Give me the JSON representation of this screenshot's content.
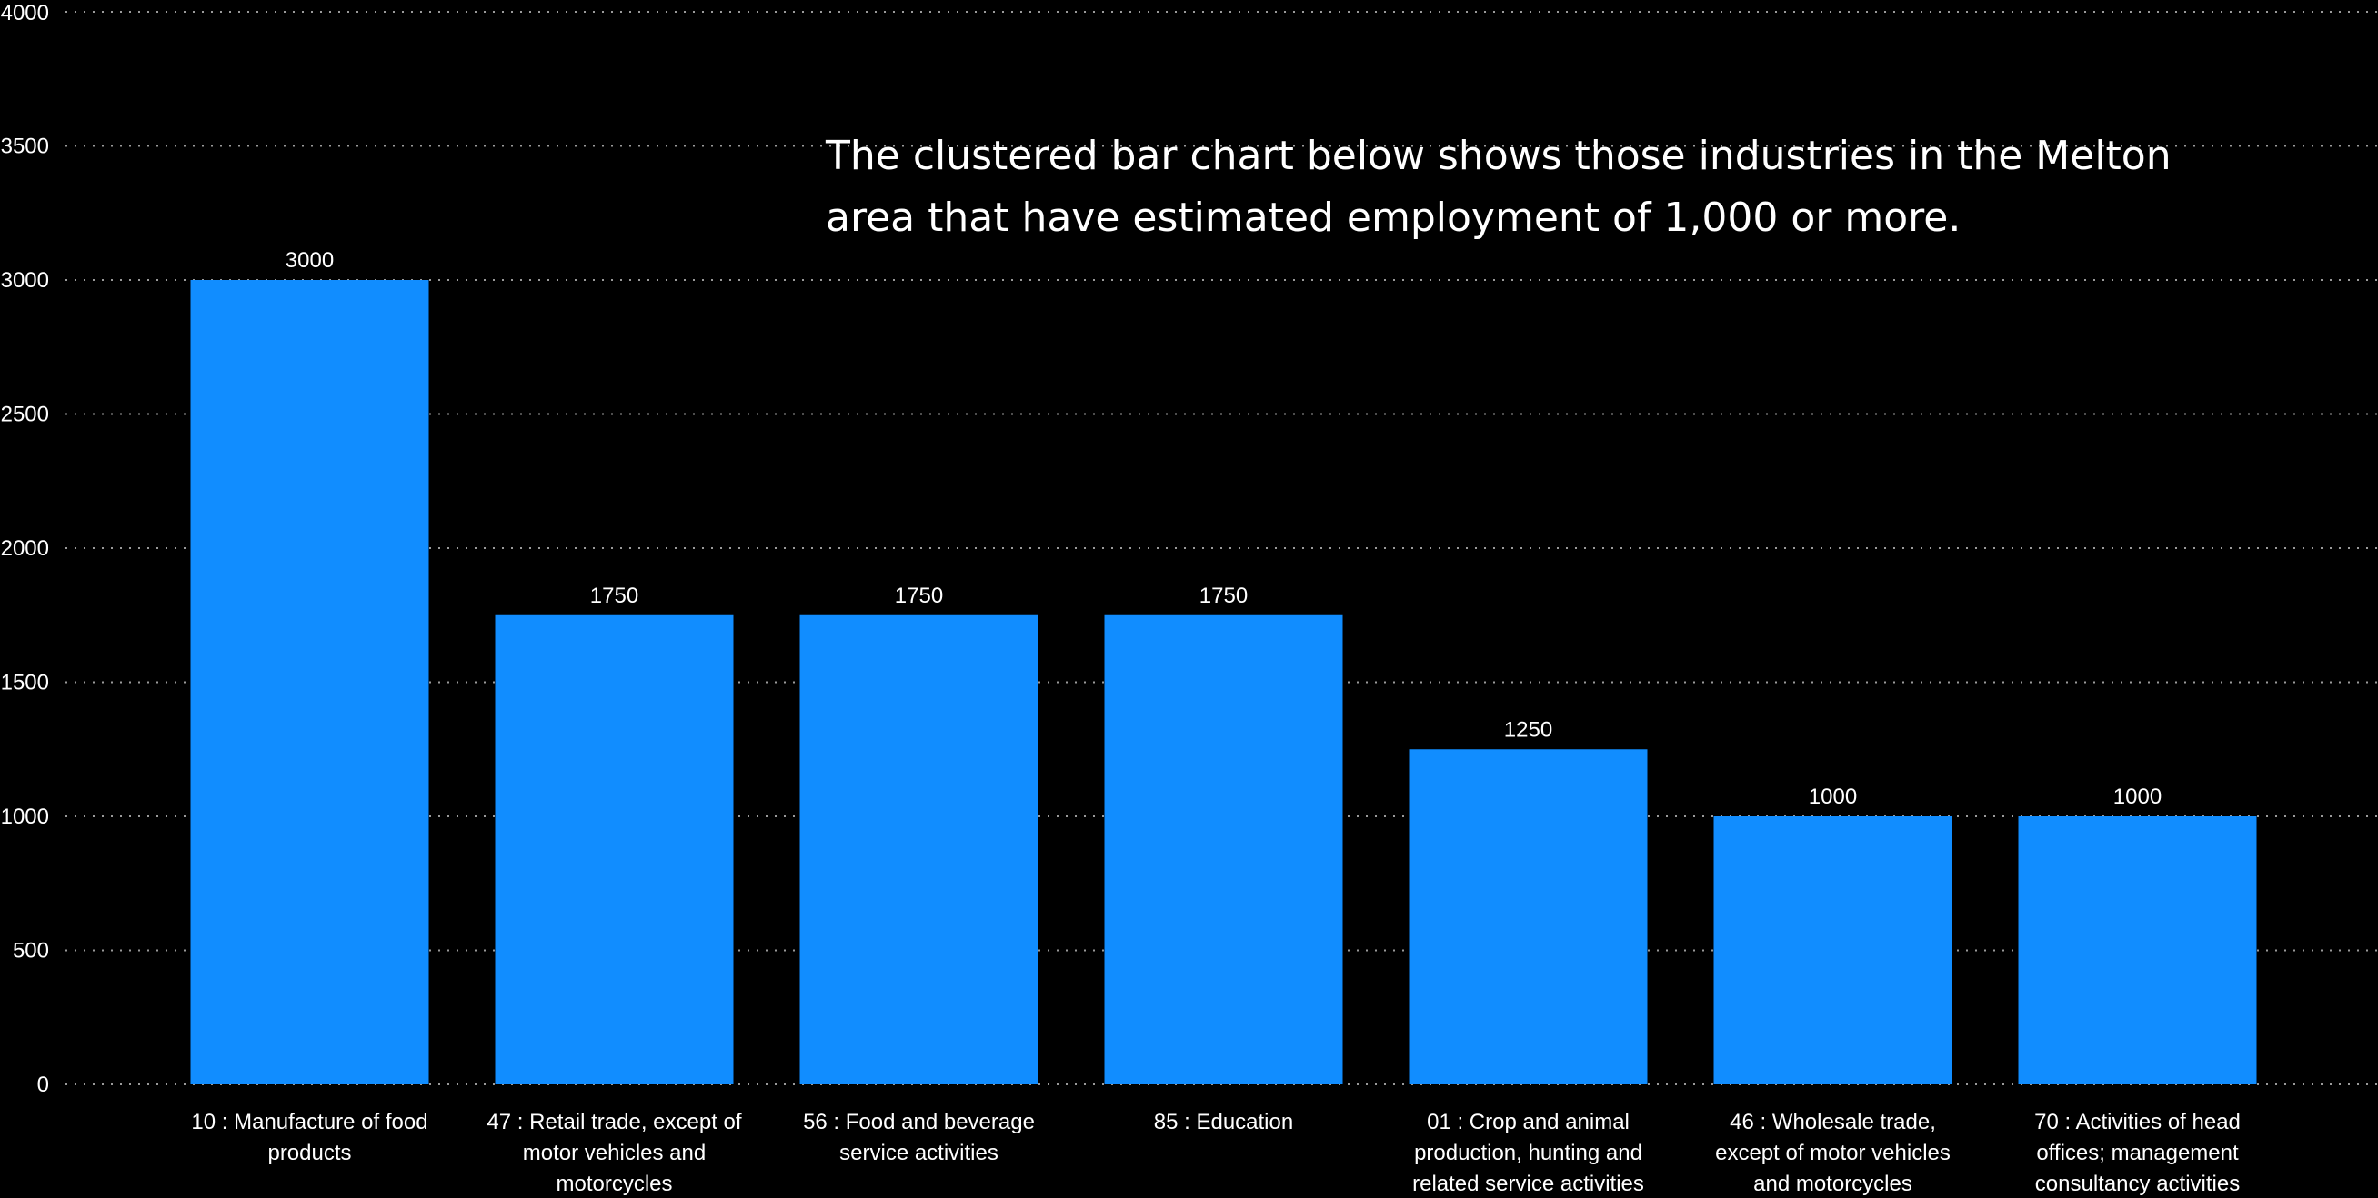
{
  "chart_data": {
    "type": "bar",
    "annotation": "The clustered bar chart below shows those industries in the Melton area that have estimated employment of 1,000 or more.",
    "categories": [
      "10 : Manufacture of food products",
      "47 : Retail trade, except of motor vehicles and motorcycles",
      "56 : Food and beverage service activities",
      "85 : Education",
      "01 : Crop and animal production, hunting and related service activities",
      "46 : Wholesale trade, except of motor vehicles and motorcycles",
      "70 : Activities of head offices; management consultancy activities"
    ],
    "values": [
      3000,
      1750,
      1750,
      1750,
      1250,
      1000,
      1000
    ],
    "data_labels": [
      "3000",
      "1750",
      "1750",
      "1750",
      "1250",
      "1000",
      "1000"
    ],
    "ylim": [
      0,
      4000
    ],
    "yticks": [
      "0",
      "500",
      "1000",
      "1500",
      "2000",
      "2500",
      "3000",
      "3500",
      "4000"
    ],
    "grid": true,
    "legend": "none",
    "xlabel": "",
    "ylabel": "",
    "colors": {
      "background": "#000000",
      "bar": "#118dff",
      "text": "#ffffff",
      "grid": "#9a9a9a"
    }
  }
}
